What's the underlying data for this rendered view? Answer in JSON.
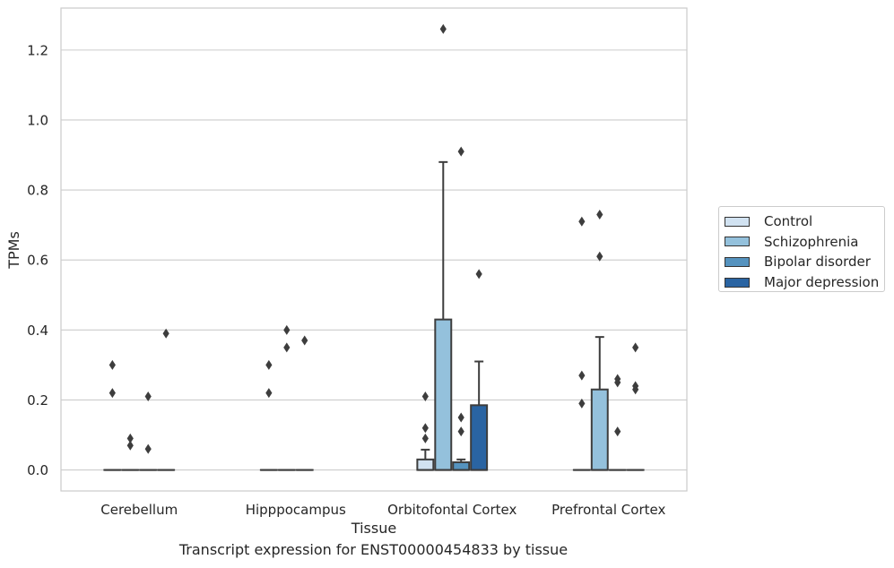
{
  "caption": "Transcript expression for ENST00000454833 by tissue",
  "chart_data": {
    "type": "box",
    "title": "",
    "xlabel": "Tissue",
    "ylabel": "TPMs",
    "ylim": [
      -0.06,
      1.32
    ],
    "yticks": [
      "0.0",
      "0.2",
      "0.4",
      "0.6",
      "0.8",
      "1.0",
      "1.2"
    ],
    "grid": "horizontal",
    "legend_position": "right",
    "categories": [
      "Cerebellum",
      "Hipppocampus",
      "Orbitofontal Cortex",
      "Prefrontal Cortex"
    ],
    "series": [
      {
        "name": "Control",
        "color": "#d1e2f1",
        "boxes": [
          {
            "q1": 0,
            "median": 0,
            "q3": 0,
            "whisker_low": 0,
            "whisker_high": 0,
            "outliers": [
              0.3,
              0.22
            ]
          },
          {
            "q1": 0,
            "median": 0,
            "q3": 0,
            "whisker_low": 0,
            "whisker_high": 0,
            "outliers": [
              0.3,
              0.22
            ]
          },
          {
            "q1": 0,
            "median": 0,
            "q3": 0.03,
            "whisker_low": 0,
            "whisker_high": 0.058,
            "outliers": [
              0.21,
              0.12,
              0.09
            ]
          },
          {
            "q1": 0,
            "median": 0,
            "q3": 0,
            "whisker_low": 0,
            "whisker_high": 0,
            "outliers": [
              0.71,
              0.27,
              0.19
            ]
          }
        ]
      },
      {
        "name": "Schizophrenia",
        "color": "#94c1dc",
        "boxes": [
          {
            "q1": 0,
            "median": 0,
            "q3": 0,
            "whisker_low": 0,
            "whisker_high": 0,
            "outliers": [
              0.09,
              0.07
            ]
          },
          {
            "q1": 0,
            "median": 0,
            "q3": 0,
            "whisker_low": 0,
            "whisker_high": 0,
            "outliers": [
              0.4,
              0.35
            ]
          },
          {
            "q1": 0,
            "median": 0,
            "q3": 0.43,
            "whisker_low": 0,
            "whisker_high": 0.88,
            "outliers": [
              1.26
            ]
          },
          {
            "q1": 0,
            "median": 0,
            "q3": 0.23,
            "whisker_low": 0,
            "whisker_high": 0.38,
            "outliers": [
              0.73,
              0.61
            ]
          }
        ]
      },
      {
        "name": "Bipolar disorder",
        "color": "#5593bf",
        "boxes": [
          {
            "q1": 0,
            "median": 0,
            "q3": 0,
            "whisker_low": 0,
            "whisker_high": 0,
            "outliers": [
              0.21,
              0.06
            ]
          },
          {
            "q1": 0,
            "median": 0,
            "q3": 0,
            "whisker_low": 0,
            "whisker_high": 0,
            "outliers": [
              0.37
            ]
          },
          {
            "q1": 0,
            "median": 0,
            "q3": 0.022,
            "whisker_low": 0,
            "whisker_high": 0.03,
            "outliers": [
              0.91,
              0.15,
              0.11
            ]
          },
          {
            "q1": 0,
            "median": 0,
            "q3": 0,
            "whisker_low": 0,
            "whisker_high": 0,
            "outliers": [
              0.26,
              0.25,
              0.11
            ]
          }
        ]
      },
      {
        "name": "Major depression",
        "color": "#2a64a2",
        "boxes": [
          {
            "q1": 0,
            "median": 0,
            "q3": 0,
            "whisker_low": 0,
            "whisker_high": 0,
            "outliers": [
              0.39
            ]
          },
          null,
          {
            "q1": 0,
            "median": 0,
            "q3": 0.185,
            "whisker_low": 0,
            "whisker_high": 0.31,
            "outliers": [
              0.56
            ]
          },
          {
            "q1": 0,
            "median": 0,
            "q3": 0,
            "whisker_low": 0,
            "whisker_high": 0,
            "outliers": [
              0.35,
              0.24,
              0.23
            ]
          }
        ]
      }
    ]
  }
}
